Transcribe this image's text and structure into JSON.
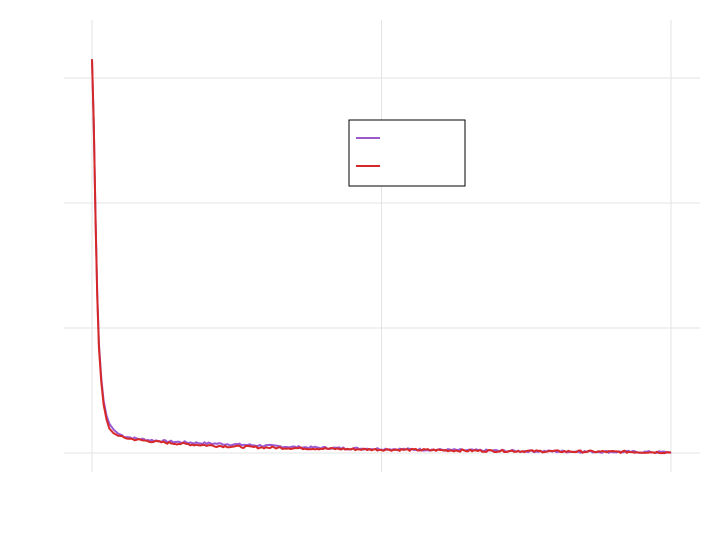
{
  "chart_data": {
    "type": "line",
    "title": "",
    "xlabel": "",
    "ylabel": "",
    "xlim": [
      0,
      1
    ],
    "ylim": [
      0,
      1
    ],
    "x_ticks": [
      0,
      0.5,
      1
    ],
    "y_ticks": [
      0,
      0.3333,
      0.6667,
      1
    ],
    "grid": true,
    "legend_position": "upper-center",
    "series": [
      {
        "color": "#9b59d0",
        "points": [
          [
            0.0,
            1.05
          ],
          [
            0.003,
            0.88
          ],
          [
            0.006,
            0.64
          ],
          [
            0.009,
            0.43
          ],
          [
            0.012,
            0.29
          ],
          [
            0.016,
            0.2
          ],
          [
            0.02,
            0.14
          ],
          [
            0.025,
            0.1
          ],
          [
            0.03,
            0.078
          ],
          [
            0.037,
            0.063
          ],
          [
            0.045,
            0.052
          ],
          [
            0.055,
            0.045
          ],
          [
            0.07,
            0.04
          ],
          [
            0.09,
            0.036
          ],
          [
            0.11,
            0.033
          ],
          [
            0.14,
            0.03
          ],
          [
            0.18,
            0.027
          ],
          [
            0.23,
            0.024
          ],
          [
            0.29,
            0.02
          ],
          [
            0.35,
            0.016
          ],
          [
            0.42,
            0.013
          ],
          [
            0.5,
            0.011
          ],
          [
            0.58,
            0.009
          ],
          [
            0.66,
            0.007
          ],
          [
            0.75,
            0.005
          ],
          [
            0.83,
            0.004
          ],
          [
            0.92,
            0.003
          ],
          [
            1.0,
            0.002
          ]
        ]
      },
      {
        "color": "#d62828",
        "points": [
          [
            0.0,
            1.05
          ],
          [
            0.003,
            0.88
          ],
          [
            0.006,
            0.63
          ],
          [
            0.009,
            0.42
          ],
          [
            0.012,
            0.28
          ],
          [
            0.016,
            0.19
          ],
          [
            0.02,
            0.13
          ],
          [
            0.025,
            0.09
          ],
          [
            0.03,
            0.065
          ],
          [
            0.037,
            0.053
          ],
          [
            0.045,
            0.046
          ],
          [
            0.055,
            0.041
          ],
          [
            0.07,
            0.037
          ],
          [
            0.09,
            0.033
          ],
          [
            0.11,
            0.03
          ],
          [
            0.14,
            0.026
          ],
          [
            0.18,
            0.022
          ],
          [
            0.23,
            0.018
          ],
          [
            0.29,
            0.015
          ],
          [
            0.35,
            0.013
          ],
          [
            0.42,
            0.011
          ],
          [
            0.5,
            0.009
          ],
          [
            0.58,
            0.008
          ],
          [
            0.66,
            0.006
          ],
          [
            0.75,
            0.005
          ],
          [
            0.83,
            0.004
          ],
          [
            0.92,
            0.003
          ],
          [
            1.0,
            0.002
          ]
        ]
      }
    ]
  }
}
